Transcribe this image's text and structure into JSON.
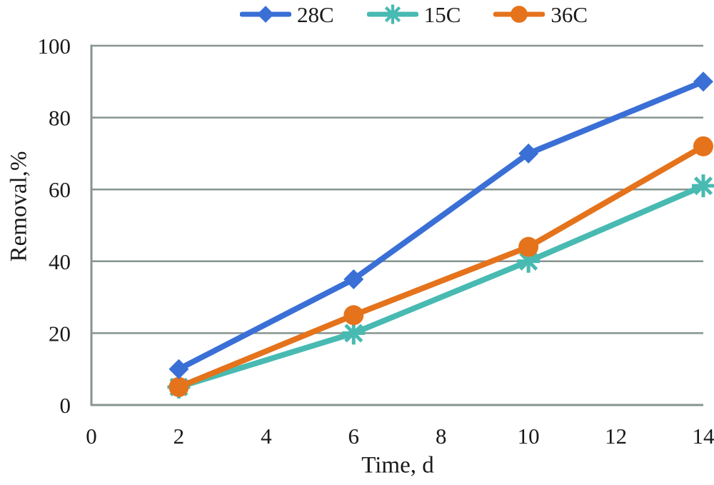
{
  "chart_data": {
    "type": "line",
    "title": "",
    "xlabel": "Time, d",
    "ylabel": "Removal,%",
    "x": [
      2,
      6,
      10,
      14
    ],
    "series": [
      {
        "name": "28C",
        "marker": "diamond",
        "color": "#3a6fd6",
        "values": [
          10,
          35,
          70,
          90
        ]
      },
      {
        "name": "15C",
        "marker": "asterisk",
        "color": "#48bab2",
        "values": [
          5,
          20,
          40,
          61
        ]
      },
      {
        "name": "36C",
        "marker": "circle",
        "color": "#e4731c",
        "values": [
          5,
          25,
          44,
          72
        ]
      }
    ],
    "xlim": [
      0,
      14
    ],
    "ylim": [
      0,
      100
    ],
    "xticks": [
      0,
      2,
      4,
      6,
      8,
      10,
      12,
      14
    ],
    "yticks": [
      0,
      20,
      40,
      60,
      80,
      100
    ],
    "grid": "horizontal",
    "legend_position": "top-center",
    "colors": {
      "gridline": "#879490",
      "axis": "#879490",
      "text": "#1a1a1a",
      "background": "#ffffff"
    }
  }
}
